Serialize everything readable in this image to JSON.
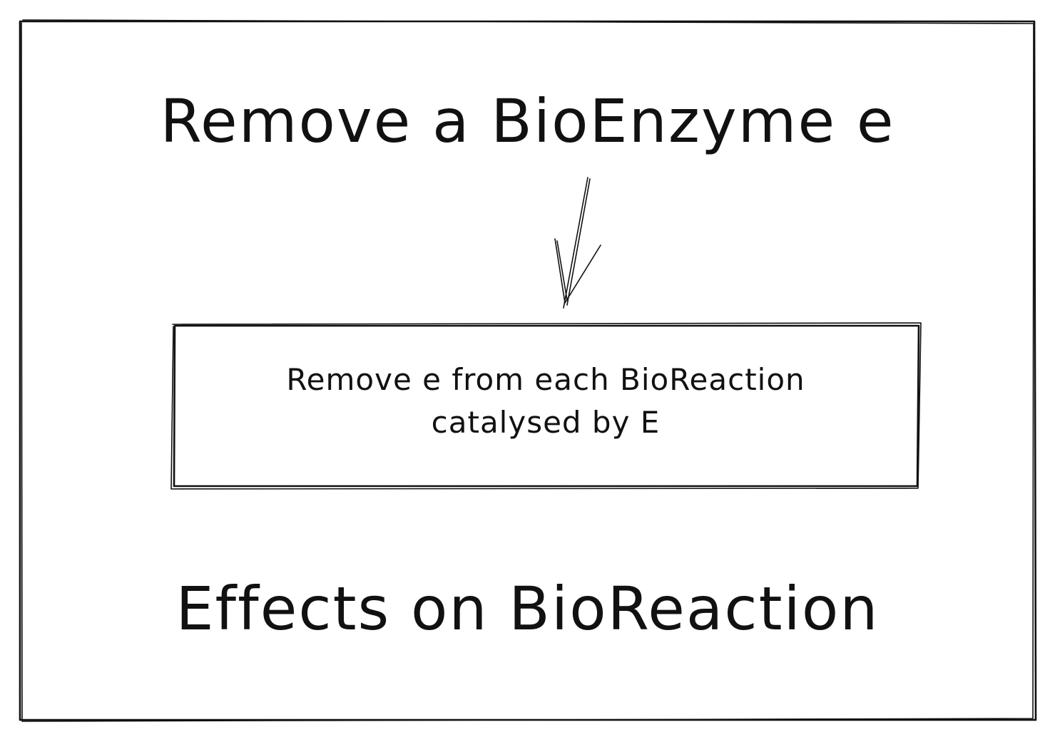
{
  "diagram": {
    "title_top": "Remove a BioEnzyme e",
    "process_box": {
      "line1": "Remove e from each BioReaction",
      "line2": "catalysed by E"
    },
    "title_bottom": "Effects on BioReaction"
  },
  "colors": {
    "ink": "#111111",
    "background": "#ffffff"
  }
}
